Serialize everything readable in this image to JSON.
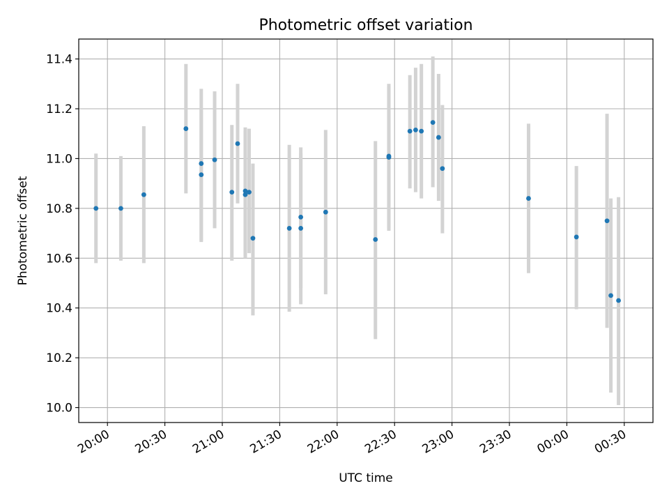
{
  "chart_data": {
    "type": "scatter",
    "title": "Photometric offset variation",
    "xlabel": "UTC time",
    "ylabel": "Photometric offset",
    "x_unit": "HH:MM UTC",
    "xlim": [
      "19:45",
      "00:45"
    ],
    "ylim": [
      9.94,
      11.48
    ],
    "x_ticks": [
      "20:00",
      "20:30",
      "21:00",
      "21:30",
      "22:00",
      "22:30",
      "23:00",
      "23:30",
      "00:00",
      "00:30"
    ],
    "y_ticks": [
      10.0,
      10.2,
      10.4,
      10.6,
      10.8,
      11.0,
      11.2,
      11.4
    ],
    "y_tick_labels": [
      "10.0",
      "10.2",
      "10.4",
      "10.6",
      "10.8",
      "11.0",
      "11.2",
      "11.4"
    ],
    "grid": true,
    "colors": {
      "point": "#1f77b4",
      "errorbar": "#d3d3d3",
      "grid": "#b0b0b0"
    },
    "points": [
      {
        "x": "19:54",
        "y": 10.8,
        "low": 10.58,
        "high": 11.02
      },
      {
        "x": "20:07",
        "y": 10.8,
        "low": 10.59,
        "high": 11.01
      },
      {
        "x": "20:19",
        "y": 10.855,
        "low": 10.58,
        "high": 11.13
      },
      {
        "x": "20:41",
        "y": 11.12,
        "low": 10.86,
        "high": 11.38
      },
      {
        "x": "20:49",
        "y": 10.98,
        "low": 10.67,
        "high": 11.28
      },
      {
        "x": "20:49",
        "y": 10.935,
        "low": 10.665,
        "high": 11.2
      },
      {
        "x": "20:56",
        "y": 10.995,
        "low": 10.72,
        "high": 11.27
      },
      {
        "x": "21:05",
        "y": 10.865,
        "low": 10.59,
        "high": 11.135
      },
      {
        "x": "21:08",
        "y": 11.06,
        "low": 10.82,
        "high": 11.3
      },
      {
        "x": "21:12",
        "y": 10.87,
        "low": 10.61,
        "high": 11.125
      },
      {
        "x": "21:12",
        "y": 10.855,
        "low": 10.6,
        "high": 11.11
      },
      {
        "x": "21:14",
        "y": 10.865,
        "low": 10.62,
        "high": 11.12
      },
      {
        "x": "21:16",
        "y": 10.68,
        "low": 10.37,
        "high": 10.98
      },
      {
        "x": "21:35",
        "y": 10.72,
        "low": 10.385,
        "high": 11.055
      },
      {
        "x": "21:41",
        "y": 10.765,
        "low": 10.48,
        "high": 11.045
      },
      {
        "x": "21:41",
        "y": 10.72,
        "low": 10.415,
        "high": 11.02
      },
      {
        "x": "21:54",
        "y": 10.785,
        "low": 10.455,
        "high": 11.115
      },
      {
        "x": "22:20",
        "y": 10.675,
        "low": 10.275,
        "high": 11.07
      },
      {
        "x": "22:27",
        "y": 11.005,
        "low": 10.71,
        "high": 11.3
      },
      {
        "x": "22:27",
        "y": 11.01,
        "low": 10.72,
        "high": 11.29
      },
      {
        "x": "22:38",
        "y": 11.11,
        "low": 10.88,
        "high": 11.335
      },
      {
        "x": "22:41",
        "y": 11.115,
        "low": 10.865,
        "high": 11.365
      },
      {
        "x": "22:44",
        "y": 11.11,
        "low": 10.84,
        "high": 11.38
      },
      {
        "x": "22:50",
        "y": 11.145,
        "low": 10.885,
        "high": 11.41
      },
      {
        "x": "22:53",
        "y": 11.085,
        "low": 10.83,
        "high": 11.34
      },
      {
        "x": "22:55",
        "y": 10.96,
        "low": 10.7,
        "high": 11.215
      },
      {
        "x": "23:40",
        "y": 10.84,
        "low": 10.54,
        "high": 11.14
      },
      {
        "x": "00:05",
        "y": 10.685,
        "low": 10.395,
        "high": 10.97
      },
      {
        "x": "00:21",
        "y": 10.75,
        "low": 10.32,
        "high": 11.18
      },
      {
        "x": "00:23",
        "y": 10.45,
        "low": 10.06,
        "high": 10.84
      },
      {
        "x": "00:27",
        "y": 10.43,
        "low": 10.01,
        "high": 10.845
      }
    ]
  }
}
